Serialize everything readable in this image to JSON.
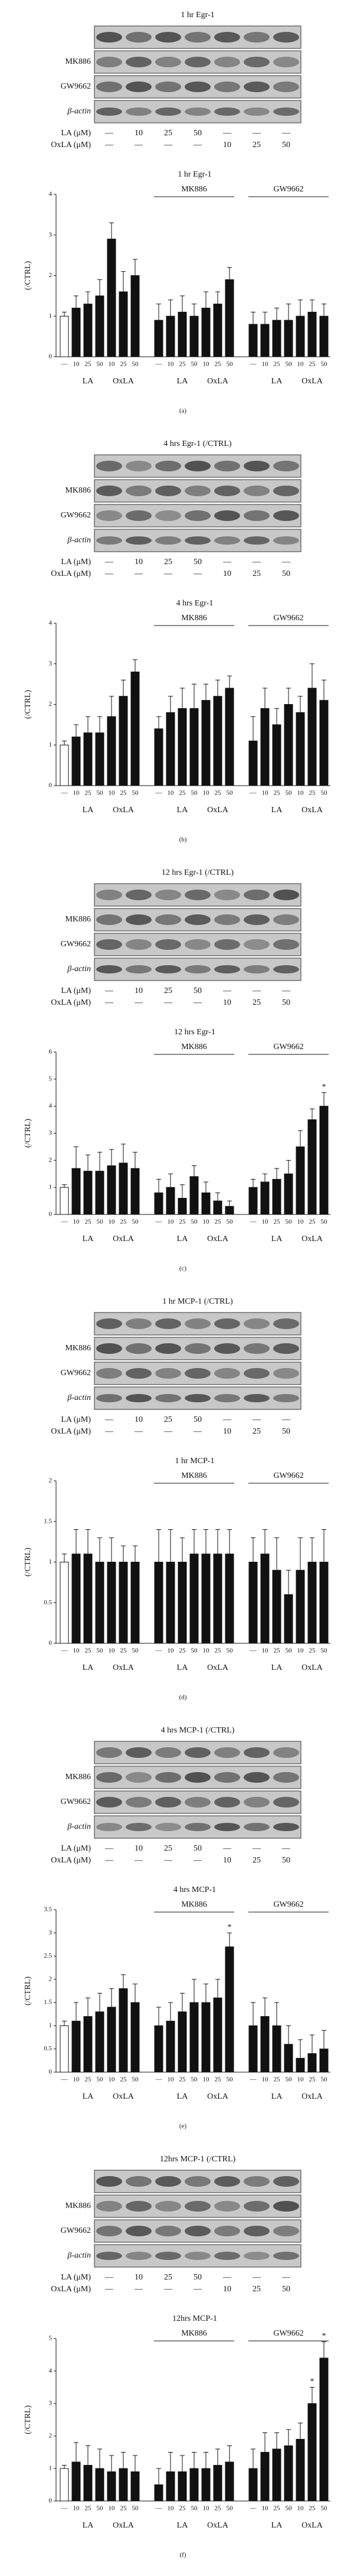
{
  "blots": [
    {
      "title": "1 hr Egr-1",
      "rows": [
        "",
        "MK886",
        "GW9662",
        "β-actin"
      ],
      "treatments": [
        {
          "label": "LA (μM)",
          "lanes": [
            "—",
            "10",
            "25",
            "50",
            "—",
            "—",
            "—"
          ]
        },
        {
          "label": "OxLA (μM)",
          "lanes": [
            "—",
            "—",
            "—",
            "—",
            "10",
            "25",
            "50"
          ]
        }
      ]
    },
    {
      "title": "4 hrs Egr-1 (/CTRL)",
      "rows": [
        "",
        "MK886",
        "GW9662",
        "β-actin"
      ],
      "treatments": [
        {
          "label": "LA (μM)",
          "lanes": [
            "—",
            "10",
            "25",
            "50",
            "—",
            "—",
            "—"
          ]
        },
        {
          "label": "OxLA (μM)",
          "lanes": [
            "—",
            "—",
            "—",
            "—",
            "10",
            "25",
            "50"
          ]
        }
      ]
    },
    {
      "title": "12 hrs Egr-1 (/CTRL)",
      "rows": [
        "",
        "MK886",
        "GW9662",
        "β-actin"
      ],
      "treatments": [
        {
          "label": "LA (μM)",
          "lanes": [
            "—",
            "10",
            "25",
            "50",
            "—",
            "—",
            "—"
          ]
        },
        {
          "label": "OxLA (μM)",
          "lanes": [
            "—",
            "—",
            "—",
            "—",
            "10",
            "25",
            "50"
          ]
        }
      ]
    },
    {
      "title": "1 hr MCP-1 (/CTRL)",
      "rows": [
        "",
        "MK886",
        "GW9662",
        "β-actin"
      ],
      "treatments": [
        {
          "label": "LA (μM)",
          "lanes": [
            "—",
            "10",
            "25",
            "50",
            "—",
            "—",
            "—"
          ]
        },
        {
          "label": "OxLA (μM)",
          "lanes": [
            "—",
            "—",
            "—",
            "—",
            "10",
            "25",
            "50"
          ]
        }
      ]
    },
    {
      "title": "4 hrs MCP-1 (/CTRL)",
      "rows": [
        "",
        "MK886",
        "GW9662",
        "β-actin"
      ],
      "treatments": [
        {
          "label": "LA (μM)",
          "lanes": [
            "—",
            "10",
            "25",
            "50",
            "—",
            "—",
            "—"
          ]
        },
        {
          "label": "OxLA (μM)",
          "lanes": [
            "—",
            "—",
            "—",
            "—",
            "10",
            "25",
            "50"
          ]
        }
      ]
    },
    {
      "title": "12hrs MCP-1 (/CTRL)",
      "rows": [
        "",
        "MK886",
        "GW9662",
        "β-actin"
      ],
      "treatments": [
        {
          "label": "LA (μM)",
          "lanes": [
            "—",
            "10",
            "25",
            "50",
            "—",
            "—",
            "—"
          ]
        },
        {
          "label": "OxLA (μM)",
          "lanes": [
            "—",
            "—",
            "—",
            "—",
            "10",
            "25",
            "50"
          ]
        }
      ]
    }
  ],
  "chart_data": [
    {
      "type": "bar",
      "title": "1 hr Egr-1",
      "y_label": "(/CTRL)",
      "panel_label": "(a)",
      "groups": [
        "MK886",
        "GW9662"
      ],
      "sublabels": [
        "LA",
        "OxLA",
        "LA",
        "OxLA",
        "LA",
        "OxLA"
      ],
      "categories": [
        "—",
        "10",
        "25",
        "50",
        "10",
        "25",
        "50",
        "—",
        "10",
        "25",
        "50",
        "10",
        "25",
        "50",
        "—",
        "10",
        "25",
        "50",
        "10",
        "25",
        "50"
      ],
      "values": [
        1.0,
        1.2,
        1.3,
        1.5,
        2.9,
        1.6,
        2.0,
        0.9,
        1.0,
        1.1,
        1.0,
        1.2,
        1.3,
        1.9,
        0.8,
        0.8,
        0.9,
        0.9,
        1.0,
        1.1,
        1.0
      ],
      "errors": [
        0.1,
        0.3,
        0.3,
        0.4,
        0.4,
        0.5,
        0.4,
        0.4,
        0.4,
        0.4,
        0.3,
        0.4,
        0.3,
        0.3,
        0.3,
        0.3,
        0.3,
        0.4,
        0.4,
        0.3,
        0.3
      ],
      "significance": [
        null,
        null,
        null,
        null,
        null,
        null,
        null,
        null,
        null,
        null,
        null,
        null,
        null,
        null,
        null,
        null,
        null,
        null,
        null,
        null,
        null
      ],
      "colors": [
        "#ffffff",
        "#111111",
        "#111111",
        "#111111",
        "#111111",
        "#111111",
        "#111111",
        "#111111",
        "#111111",
        "#111111",
        "#111111",
        "#111111",
        "#111111",
        "#111111",
        "#111111",
        "#111111",
        "#111111",
        "#111111",
        "#111111",
        "#111111",
        "#111111"
      ],
      "ylim": [
        0,
        4
      ],
      "yticks": [
        0,
        1,
        2,
        3,
        4
      ]
    },
    {
      "type": "bar",
      "title": "4 hrs Egr-1",
      "y_label": "(/CTRL)",
      "panel_label": "(b)",
      "groups": [
        "MK886",
        "GW9662"
      ],
      "sublabels": [
        "LA",
        "OxLA",
        "LA",
        "OxLA",
        "LA",
        "OxLA"
      ],
      "categories": [
        "—",
        "10",
        "25",
        "50",
        "10",
        "25",
        "50",
        "—",
        "10",
        "25",
        "50",
        "10",
        "25",
        "50",
        "—",
        "10",
        "25",
        "50",
        "10",
        "25",
        "50"
      ],
      "values": [
        1.0,
        1.2,
        1.3,
        1.3,
        1.7,
        2.2,
        2.8,
        1.4,
        1.8,
        1.9,
        1.9,
        2.1,
        2.2,
        2.4,
        1.1,
        1.9,
        1.5,
        2.0,
        1.8,
        2.4,
        2.1
      ],
      "errors": [
        0.1,
        0.3,
        0.4,
        0.4,
        0.5,
        0.4,
        0.3,
        0.3,
        0.4,
        0.5,
        0.6,
        0.4,
        0.4,
        0.3,
        0.6,
        0.5,
        0.4,
        0.4,
        0.4,
        0.6,
        0.5
      ],
      "significance": [
        null,
        null,
        null,
        null,
        null,
        null,
        null,
        null,
        null,
        null,
        null,
        null,
        null,
        null,
        null,
        null,
        null,
        null,
        null,
        null,
        null
      ],
      "colors": [
        "#ffffff",
        "#111111",
        "#111111",
        "#111111",
        "#111111",
        "#111111",
        "#111111",
        "#111111",
        "#111111",
        "#111111",
        "#111111",
        "#111111",
        "#111111",
        "#111111",
        "#111111",
        "#111111",
        "#111111",
        "#111111",
        "#111111",
        "#111111",
        "#111111"
      ],
      "ylim": [
        0,
        4
      ],
      "yticks": [
        0,
        1,
        2,
        3,
        4
      ]
    },
    {
      "type": "bar",
      "title": "12 hrs Egr-1",
      "y_label": "(/CTRL)",
      "panel_label": "(c)",
      "groups": [
        "MK886",
        "GW9662"
      ],
      "sublabels": [
        "LA",
        "OxLA",
        "LA",
        "OxLA",
        "LA",
        "OxLA"
      ],
      "categories": [
        "—",
        "10",
        "25",
        "50",
        "10",
        "25",
        "50",
        "—",
        "10",
        "25",
        "50",
        "10",
        "25",
        "50",
        "—",
        "10",
        "25",
        "50",
        "10",
        "25",
        "50"
      ],
      "values": [
        1.0,
        1.7,
        1.6,
        1.6,
        1.8,
        1.9,
        1.7,
        0.8,
        1.0,
        0.6,
        1.4,
        0.8,
        0.5,
        0.3,
        1.0,
        1.2,
        1.3,
        1.5,
        2.5,
        3.5,
        4.0
      ],
      "errors": [
        0.1,
        0.8,
        0.6,
        0.7,
        0.6,
        0.7,
        0.6,
        0.5,
        0.5,
        0.5,
        0.4,
        0.4,
        0.3,
        0.2,
        0.3,
        0.3,
        0.4,
        0.5,
        0.6,
        0.4,
        0.5
      ],
      "significance": [
        null,
        null,
        null,
        null,
        null,
        null,
        null,
        null,
        null,
        null,
        null,
        null,
        null,
        null,
        null,
        null,
        null,
        null,
        null,
        null,
        "*"
      ],
      "colors": [
        "#ffffff",
        "#111111",
        "#111111",
        "#111111",
        "#111111",
        "#111111",
        "#111111",
        "#111111",
        "#111111",
        "#111111",
        "#111111",
        "#111111",
        "#111111",
        "#111111",
        "#111111",
        "#111111",
        "#111111",
        "#111111",
        "#111111",
        "#111111",
        "#111111"
      ],
      "ylim": [
        0,
        6
      ],
      "yticks": [
        0,
        1,
        2,
        3,
        4,
        5,
        6
      ]
    },
    {
      "type": "bar",
      "title": "1 hr MCP-1",
      "y_label": "(/CTRL)",
      "panel_label": "(d)",
      "groups": [
        "MK886",
        "GW9662"
      ],
      "sublabels": [
        "LA",
        "OxLA",
        "LA",
        "OxLA",
        "LA",
        "OxLA"
      ],
      "categories": [
        "—",
        "10",
        "25",
        "50",
        "10",
        "25",
        "50",
        "—",
        "10",
        "25",
        "50",
        "10",
        "25",
        "50",
        "—",
        "10",
        "25",
        "50",
        "10",
        "25",
        "50"
      ],
      "values": [
        1.0,
        1.1,
        1.1,
        1.0,
        1.0,
        1.0,
        1.0,
        1.0,
        1.0,
        1.0,
        1.1,
        1.1,
        1.1,
        1.1,
        1.0,
        1.1,
        0.9,
        0.6,
        0.9,
        1.0,
        1.0
      ],
      "errors": [
        0.1,
        0.3,
        0.3,
        0.3,
        0.3,
        0.2,
        0.2,
        0.4,
        0.4,
        0.3,
        0.3,
        0.3,
        0.3,
        0.3,
        0.3,
        0.3,
        0.4,
        0.3,
        0.4,
        0.3,
        0.4
      ],
      "significance": [
        null,
        null,
        null,
        null,
        null,
        null,
        null,
        null,
        null,
        null,
        null,
        null,
        null,
        null,
        null,
        null,
        null,
        null,
        null,
        null,
        null
      ],
      "colors": [
        "#ffffff",
        "#111111",
        "#111111",
        "#111111",
        "#111111",
        "#111111",
        "#111111",
        "#111111",
        "#111111",
        "#111111",
        "#111111",
        "#111111",
        "#111111",
        "#111111",
        "#111111",
        "#111111",
        "#111111",
        "#111111",
        "#111111",
        "#111111",
        "#111111"
      ],
      "ylim": [
        0,
        2
      ],
      "yticks": [
        0,
        0.5,
        1,
        1.5,
        2
      ]
    },
    {
      "type": "bar",
      "title": "4 hrs MCP-1",
      "y_label": "(/CTRL)",
      "panel_label": "(e)",
      "groups": [
        "MK886",
        "GW9662"
      ],
      "sublabels": [
        "LA",
        "OxLA",
        "LA",
        "OxLA",
        "LA",
        "OxLA"
      ],
      "categories": [
        "—",
        "10",
        "25",
        "50",
        "10",
        "25",
        "50",
        "—",
        "10",
        "25",
        "50",
        "10",
        "25",
        "50",
        "—",
        "10",
        "25",
        "50",
        "10",
        "25",
        "50"
      ],
      "values": [
        1.0,
        1.1,
        1.2,
        1.3,
        1.4,
        1.8,
        1.5,
        1.0,
        1.1,
        1.3,
        1.5,
        1.5,
        1.6,
        2.7,
        1.0,
        1.2,
        1.0,
        0.6,
        0.3,
        0.4,
        0.5
      ],
      "errors": [
        0.1,
        0.4,
        0.4,
        0.4,
        0.4,
        0.3,
        0.4,
        0.4,
        0.4,
        0.4,
        0.5,
        0.4,
        0.4,
        0.3,
        0.5,
        0.4,
        0.5,
        0.4,
        0.4,
        0.4,
        0.4
      ],
      "significance": [
        null,
        null,
        null,
        null,
        null,
        null,
        null,
        null,
        null,
        null,
        null,
        null,
        null,
        "*",
        null,
        null,
        null,
        null,
        null,
        null,
        null
      ],
      "colors": [
        "#ffffff",
        "#111111",
        "#111111",
        "#111111",
        "#111111",
        "#111111",
        "#111111",
        "#111111",
        "#111111",
        "#111111",
        "#111111",
        "#111111",
        "#111111",
        "#111111",
        "#111111",
        "#111111",
        "#111111",
        "#111111",
        "#111111",
        "#111111",
        "#111111"
      ],
      "ylim": [
        0,
        3.5
      ],
      "yticks": [
        0,
        0.5,
        1,
        1.5,
        2,
        2.5,
        3,
        3.5
      ]
    },
    {
      "type": "bar",
      "title": "12hrs MCP-1",
      "y_label": "(/CTRL)",
      "panel_label": "(f)",
      "groups": [
        "MK886",
        "GW9662"
      ],
      "sublabels": [
        "LA",
        "OxLA",
        "LA",
        "OxLA",
        "LA",
        "OxLA"
      ],
      "categories": [
        "—",
        "10",
        "25",
        "50",
        "10",
        "25",
        "50",
        "—",
        "10",
        "25",
        "50",
        "10",
        "25",
        "50",
        "—",
        "10",
        "25",
        "50",
        "10",
        "25",
        "50"
      ],
      "values": [
        1.0,
        1.2,
        1.1,
        1.0,
        0.9,
        1.0,
        0.9,
        0.5,
        0.9,
        0.9,
        1.0,
        1.0,
        1.1,
        1.2,
        1.0,
        1.5,
        1.6,
        1.7,
        1.9,
        3.0,
        4.4
      ],
      "errors": [
        0.1,
        0.6,
        0.6,
        0.6,
        0.5,
        0.5,
        0.5,
        0.5,
        0.6,
        0.5,
        0.5,
        0.5,
        0.5,
        0.5,
        0.6,
        0.6,
        0.5,
        0.5,
        0.5,
        0.5,
        0.5
      ],
      "significance": [
        null,
        null,
        null,
        null,
        null,
        null,
        null,
        null,
        null,
        null,
        null,
        null,
        null,
        null,
        null,
        null,
        null,
        null,
        null,
        "*",
        "*"
      ],
      "colors": [
        "#ffffff",
        "#111111",
        "#111111",
        "#111111",
        "#111111",
        "#111111",
        "#111111",
        "#111111",
        "#111111",
        "#111111",
        "#111111",
        "#111111",
        "#111111",
        "#111111",
        "#111111",
        "#111111",
        "#111111",
        "#111111",
        "#111111",
        "#111111",
        "#111111"
      ],
      "ylim": [
        0,
        5
      ],
      "yticks": [
        0,
        1,
        2,
        3,
        4,
        5
      ]
    }
  ]
}
